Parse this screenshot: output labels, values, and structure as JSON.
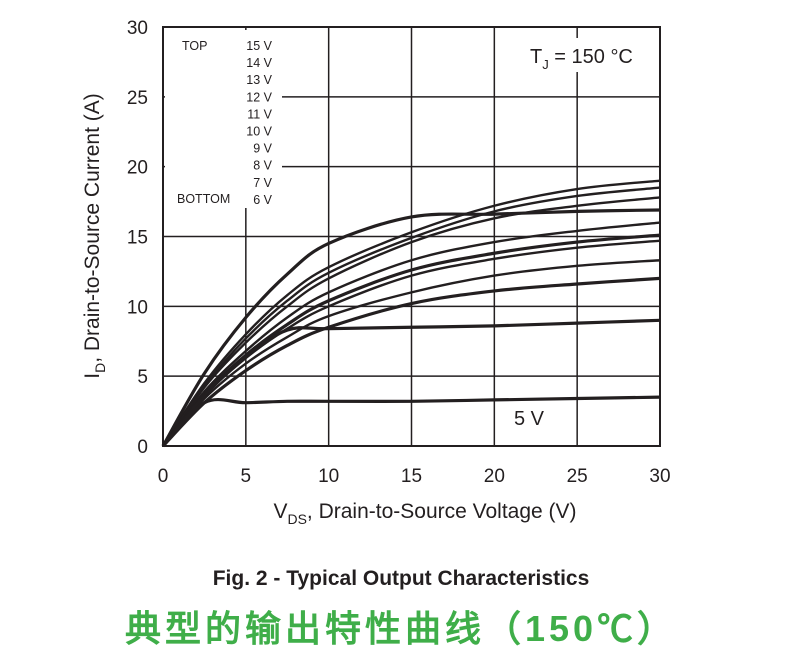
{
  "chart_data": {
    "type": "line",
    "xlabel": "V",
    "xlabel_sub": "DS",
    "xlabel_rest": ", Drain-to-Source Voltage (V)",
    "ylabel": "I",
    "ylabel_sub": "D",
    "ylabel_rest": ", Drain-to-Source Current (A)",
    "xlim": [
      0,
      30
    ],
    "ylim": [
      0,
      30
    ],
    "xticks": [
      "0",
      "5",
      "10",
      "15",
      "20",
      "25",
      "30"
    ],
    "yticks": [
      "0",
      "5",
      "10",
      "15",
      "20",
      "25",
      "30"
    ],
    "grid": true,
    "legend_position": "top-left",
    "legend": {
      "top_label": "TOP",
      "bottom_label": "BOTTOM",
      "entries": [
        "15 V",
        "14 V",
        "13 V",
        "12 V",
        "11 V",
        "10 V",
        "9 V",
        "8 V",
        "7 V",
        "6 V"
      ]
    },
    "annotation_tj": "T",
    "annotation_tj_sub": "J",
    "annotation_tj_rest": " = 150 °C",
    "annotation_5v": "5 V",
    "x": [
      0,
      2.5,
      5,
      7.5,
      10,
      15,
      20,
      25,
      30
    ],
    "series": [
      {
        "values": [
          0,
          4.5,
          8.0,
          10.8,
          12.8,
          15.3,
          17.2,
          18.4,
          19.0
        ]
      },
      {
        "values": [
          0,
          4.3,
          7.7,
          10.4,
          12.4,
          14.9,
          16.8,
          17.9,
          18.5
        ]
      },
      {
        "values": [
          0,
          5.2,
          9.2,
          12.3,
          14.5,
          16.4,
          16.6,
          16.8,
          16.9
        ]
      },
      {
        "values": [
          0,
          4.2,
          7.4,
          10.0,
          12.0,
          14.6,
          16.3,
          17.2,
          17.8
        ]
      },
      {
        "values": [
          0,
          3.9,
          6.8,
          9.2,
          11.0,
          13.3,
          14.6,
          15.4,
          16.0
        ]
      },
      {
        "values": [
          0,
          3.7,
          6.5,
          8.7,
          10.4,
          12.6,
          13.8,
          14.6,
          15.1
        ]
      },
      {
        "values": [
          0,
          3.6,
          6.3,
          8.4,
          10.0,
          12.2,
          13.4,
          14.2,
          14.7
        ]
      },
      {
        "values": [
          0,
          3.4,
          5.9,
          7.8,
          9.3,
          11.0,
          12.2,
          12.9,
          13.3
        ]
      },
      {
        "values": [
          0,
          3.1,
          5.4,
          7.2,
          8.5,
          10.2,
          11.1,
          11.6,
          12.0
        ]
      },
      {
        "values": [
          0,
          3.6,
          6.4,
          8.3,
          8.4,
          8.5,
          8.6,
          8.8,
          9.0
        ]
      },
      {
        "values": [
          0,
          3.1,
          3.1,
          3.2,
          3.2,
          3.2,
          3.3,
          3.4,
          3.5
        ]
      }
    ],
    "title": "Fig. 2 - Typical Output Characteristics",
    "subtitle_cn": "典型的输出特性曲线（150℃）"
  },
  "colors": {
    "line": "#231f20",
    "subtitle": "#3fae49"
  }
}
